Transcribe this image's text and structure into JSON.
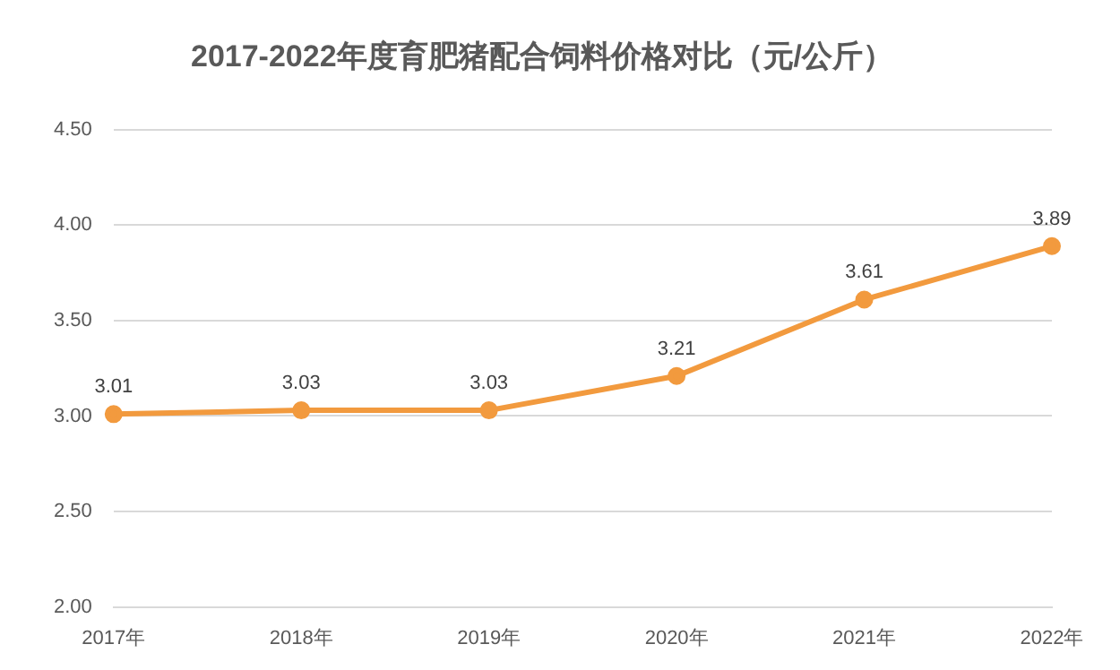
{
  "chart_data": {
    "type": "line",
    "title": "2017-2022年度育肥猪配合饲料价格对比（元/公斤）",
    "categories": [
      "2017年",
      "2018年",
      "2019年",
      "2020年",
      "2021年",
      "2022年"
    ],
    "series": [
      {
        "color": "#f29a3e",
        "values": [
          3.01,
          3.03,
          3.03,
          3.21,
          3.61,
          3.89
        ]
      }
    ],
    "ylim": [
      2,
      4.5
    ],
    "yticks": [
      {
        "value": 2,
        "label": "2.00"
      },
      {
        "value": 2.5,
        "label": "2.50"
      },
      {
        "value": 3,
        "label": "3.00"
      },
      {
        "value": 3.5,
        "label": "3.50"
      },
      {
        "value": 4,
        "label": "4.00"
      },
      {
        "value": 4.5,
        "label": "4.50"
      }
    ],
    "grid": "y",
    "legend": false,
    "marker": "circle",
    "line_style": "solid",
    "data_labels": true
  }
}
